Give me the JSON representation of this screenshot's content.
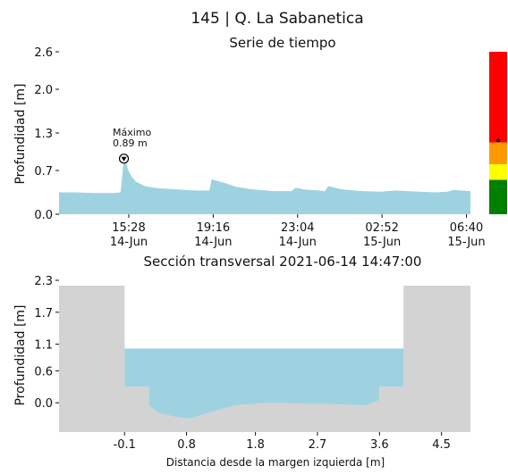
{
  "page": {
    "title": "145 | Q. La Sabanetica"
  },
  "colors": {
    "water": "#9fd2e0",
    "terrain": "#d3d3d3",
    "background": "#ffffff",
    "axis": "#111111",
    "alert_red": "#ff0000",
    "alert_orange": "#ff9900",
    "alert_yellow": "#ffff00",
    "alert_green": "#007f00",
    "marker": "#000000"
  },
  "chart_data": [
    {
      "type": "area",
      "title": "Serie de tiempo",
      "ylabel": "Profundidad [m]",
      "xlabel": "",
      "xlim_hours": [
        12.33,
        30.85
      ],
      "ylim": [
        0.0,
        2.6
      ],
      "yticks": [
        0.0,
        0.7,
        1.3,
        2.0,
        2.6
      ],
      "ytick_labels": [
        "0.0",
        "0.7",
        "1.3",
        "2.0",
        "2.6"
      ],
      "xtick_labels": [
        {
          "time": "15:28",
          "date": "14-Jun"
        },
        {
          "time": "19:16",
          "date": "14-Jun"
        },
        {
          "time": "23:04",
          "date": "14-Jun"
        },
        {
          "time": "02:52",
          "date": "15-Jun"
        },
        {
          "time": "06:40",
          "date": "15-Jun"
        }
      ],
      "xticks_hours": [
        15.47,
        19.27,
        23.07,
        26.87,
        30.67
      ],
      "series": [
        {
          "x_hours": [
            12.33,
            13.0,
            14.0,
            14.8,
            15.1,
            15.25,
            15.35,
            15.45,
            15.6,
            15.8,
            16.2,
            16.7,
            17.5,
            18.5,
            19.1,
            19.2,
            19.3,
            19.5,
            19.8,
            20.3,
            21.0,
            22.0,
            22.8,
            22.95,
            23.1,
            23.3,
            23.6,
            24.0,
            24.3,
            24.45,
            24.6,
            25.0,
            26.0,
            26.8,
            27.5,
            28.5,
            29.3,
            29.8,
            30.1,
            30.4,
            30.85
          ],
          "y": [
            0.35,
            0.35,
            0.34,
            0.34,
            0.35,
            0.89,
            0.82,
            0.7,
            0.6,
            0.52,
            0.45,
            0.42,
            0.4,
            0.38,
            0.38,
            0.56,
            0.55,
            0.53,
            0.5,
            0.44,
            0.4,
            0.37,
            0.37,
            0.42,
            0.42,
            0.4,
            0.39,
            0.38,
            0.37,
            0.45,
            0.44,
            0.4,
            0.37,
            0.36,
            0.38,
            0.36,
            0.35,
            0.36,
            0.39,
            0.38,
            0.37
          ]
        }
      ],
      "annotation": {
        "label": "Máximo",
        "value_label": "0.89 m",
        "x_hours": 15.25,
        "y": 0.89
      },
      "alert_bar": {
        "ylim": [
          0.0,
          2.6
        ],
        "levels": [
          {
            "from": 0.0,
            "to": 0.55,
            "color": "#007f00"
          },
          {
            "from": 0.55,
            "to": 0.8,
            "color": "#ffff00"
          },
          {
            "from": 0.8,
            "to": 1.15,
            "color": "#ff9900"
          },
          {
            "from": 1.15,
            "to": 3.45,
            "color": "#ff0000"
          }
        ],
        "current_level": 1.15
      }
    },
    {
      "type": "area",
      "title": "Sección transversal 2021-06-14 14:47:00",
      "xlabel": "Distancia desde la margen izquierda [m]",
      "ylabel": "Profundidad [m]",
      "xlim": [
        -1.05,
        4.92
      ],
      "ylim": [
        -0.55,
        2.3
      ],
      "xticks": [
        -0.1,
        0.8,
        1.8,
        2.7,
        3.6,
        4.5
      ],
      "xtick_labels": [
        "-0.1",
        "0.8",
        "1.8",
        "2.7",
        "3.6",
        "4.5"
      ],
      "yticks": [
        0.0,
        0.6,
        1.1,
        1.7,
        2.3
      ],
      "ytick_labels": [
        "0.0",
        "0.6",
        "1.1",
        "1.7",
        "2.3"
      ],
      "water_level": 1.02,
      "bed_profile": {
        "x": [
          -1.05,
          -0.1,
          -0.1,
          0.25,
          0.25,
          0.4,
          0.65,
          0.85,
          1.1,
          1.5,
          2.0,
          2.5,
          3.0,
          3.4,
          3.6,
          3.6,
          3.95,
          3.95,
          4.92
        ],
        "y": [
          2.2,
          2.2,
          0.3,
          0.3,
          -0.05,
          -0.2,
          -0.27,
          -0.3,
          -0.2,
          -0.05,
          0.0,
          -0.02,
          -0.03,
          -0.05,
          0.05,
          0.3,
          0.3,
          2.2,
          2.2
        ]
      }
    }
  ]
}
